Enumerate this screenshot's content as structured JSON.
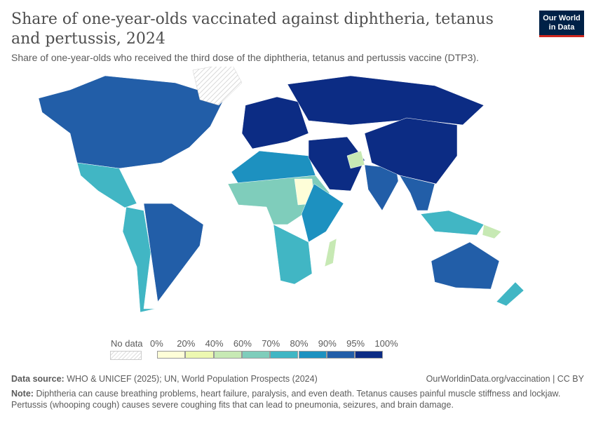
{
  "header": {
    "title": "Share of one-year-olds vaccinated against diphtheria, tetanus and pertussis, 2024",
    "subtitle": "Share of one-year-olds who received the third dose of the diphtheria, tetanus and pertussis vaccine (DTP3).",
    "logo": "Our World in Data"
  },
  "legend": {
    "no_data_label": "No data",
    "no_data_color": "#e8e8e8",
    "bins": [
      {
        "from": "0%",
        "to": "20%",
        "color": "#fefed8"
      },
      {
        "from": "20%",
        "to": "40%",
        "color": "#edf8b1"
      },
      {
        "from": "40%",
        "to": "60%",
        "color": "#c7e9b4"
      },
      {
        "from": "60%",
        "to": "70%",
        "color": "#7fcdbb"
      },
      {
        "from": "70%",
        "to": "80%",
        "color": "#41b6c4"
      },
      {
        "from": "80%",
        "to": "90%",
        "color": "#1d91c0"
      },
      {
        "from": "90%",
        "to": "95%",
        "color": "#225ea8"
      },
      {
        "from": "95%",
        "to": "100%",
        "color": "#0c2c84"
      }
    ],
    "tick_labels": [
      "0%",
      "20%",
      "40%",
      "60%",
      "70%",
      "80%",
      "90%",
      "95%",
      "100%"
    ]
  },
  "map": {
    "regions": [
      {
        "name": "north-america",
        "color": "#225ea8"
      },
      {
        "name": "greenland",
        "color": "nodata"
      },
      {
        "name": "central-america",
        "color": "#41b6c4"
      },
      {
        "name": "south-america-west",
        "color": "#41b6c4"
      },
      {
        "name": "brazil",
        "color": "#225ea8"
      },
      {
        "name": "europe",
        "color": "#0c2c84"
      },
      {
        "name": "russia",
        "color": "#0c2c84"
      },
      {
        "name": "north-africa",
        "color": "#1d91c0"
      },
      {
        "name": "sub-saharan-africa",
        "color": "#7fcdbb"
      },
      {
        "name": "sudan",
        "color": "#fefed8"
      },
      {
        "name": "east-africa",
        "color": "#1d91c0"
      },
      {
        "name": "southern-africa",
        "color": "#41b6c4"
      },
      {
        "name": "madagascar",
        "color": "#c7e9b4"
      },
      {
        "name": "middle-east",
        "color": "#0c2c84"
      },
      {
        "name": "afghanistan",
        "color": "#c7e9b4"
      },
      {
        "name": "india",
        "color": "#225ea8"
      },
      {
        "name": "china",
        "color": "#0c2c84"
      },
      {
        "name": "southeast-asia",
        "color": "#225ea8"
      },
      {
        "name": "indonesia",
        "color": "#41b6c4"
      },
      {
        "name": "papua-new-guinea",
        "color": "#c7e9b4"
      },
      {
        "name": "australia",
        "color": "#225ea8"
      },
      {
        "name": "new-zealand",
        "color": "#41b6c4"
      }
    ]
  },
  "footer": {
    "source_label": "Data source:",
    "source": "WHO & UNICEF (2025); UN, World Population Prospects (2024)",
    "url": "OurWorldinData.org/vaccination | CC BY",
    "note_label": "Note:",
    "note1": "Diphtheria can cause breathing problems, heart failure, paralysis, and even death. Tetanus causes painful muscle stiffness and lockjaw.",
    "note2": "Pertussis (whooping cough) causes severe coughing fits that can lead to pneumonia, seizures, and brain damage."
  }
}
